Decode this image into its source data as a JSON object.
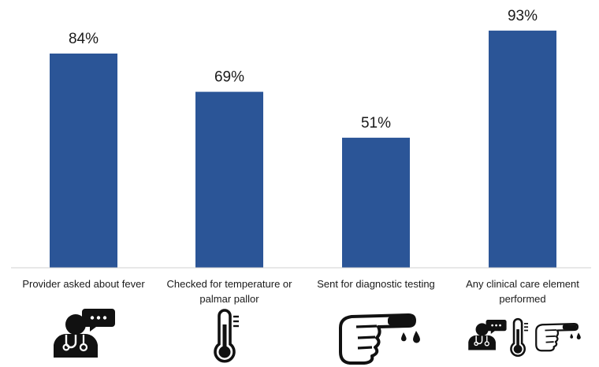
{
  "chart_data": {
    "type": "bar",
    "categories": [
      [
        "Provider asked about fever"
      ],
      [
        "Checked for temperature or",
        "palmar pallor"
      ],
      [
        "Sent for diagnostic testing"
      ],
      [
        "Any clinical care element",
        "performed"
      ]
    ],
    "values": [
      84,
      69,
      51,
      93
    ],
    "value_labels": [
      "84%",
      "69%",
      "51%",
      "93%"
    ],
    "ylim": [
      0,
      100
    ],
    "grid": false,
    "legend": "none",
    "bar_color": "#2b5597",
    "icons": [
      "provider-speech-icon",
      "thermometer-icon",
      "finger-prick-icon",
      "combined-care-icons"
    ]
  }
}
